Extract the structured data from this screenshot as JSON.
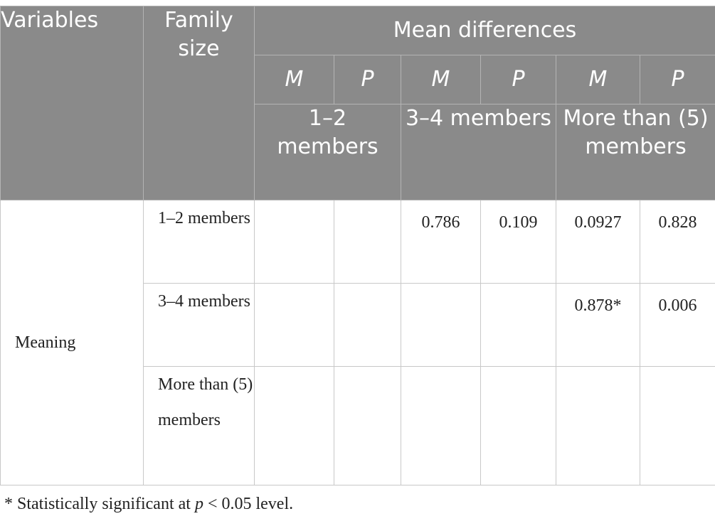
{
  "header": {
    "variables": "Variables",
    "family_size": "Family size",
    "mean_differences": "Mean differences",
    "mp": [
      "M",
      "P",
      "M",
      "P",
      "M",
      "P"
    ],
    "groups": [
      "1–2 members",
      "3–4 members",
      "More than (5) members"
    ]
  },
  "body": {
    "variable": "Meaning",
    "rows": [
      {
        "family_size": "1–2 members",
        "values": [
          "",
          "",
          "0.786",
          "0.109",
          "0.0927",
          "0.828"
        ]
      },
      {
        "family_size": "3–4 members",
        "values": [
          "",
          "",
          "",
          "",
          "0.878*",
          "0.006"
        ]
      },
      {
        "family_size": "More than (5) members",
        "values": [
          "",
          "",
          "",
          "",
          "",
          ""
        ]
      }
    ]
  },
  "footnote": {
    "prefix": "* Statistically significant at ",
    "p": "p",
    "suffix": " < 0.05 level."
  }
}
